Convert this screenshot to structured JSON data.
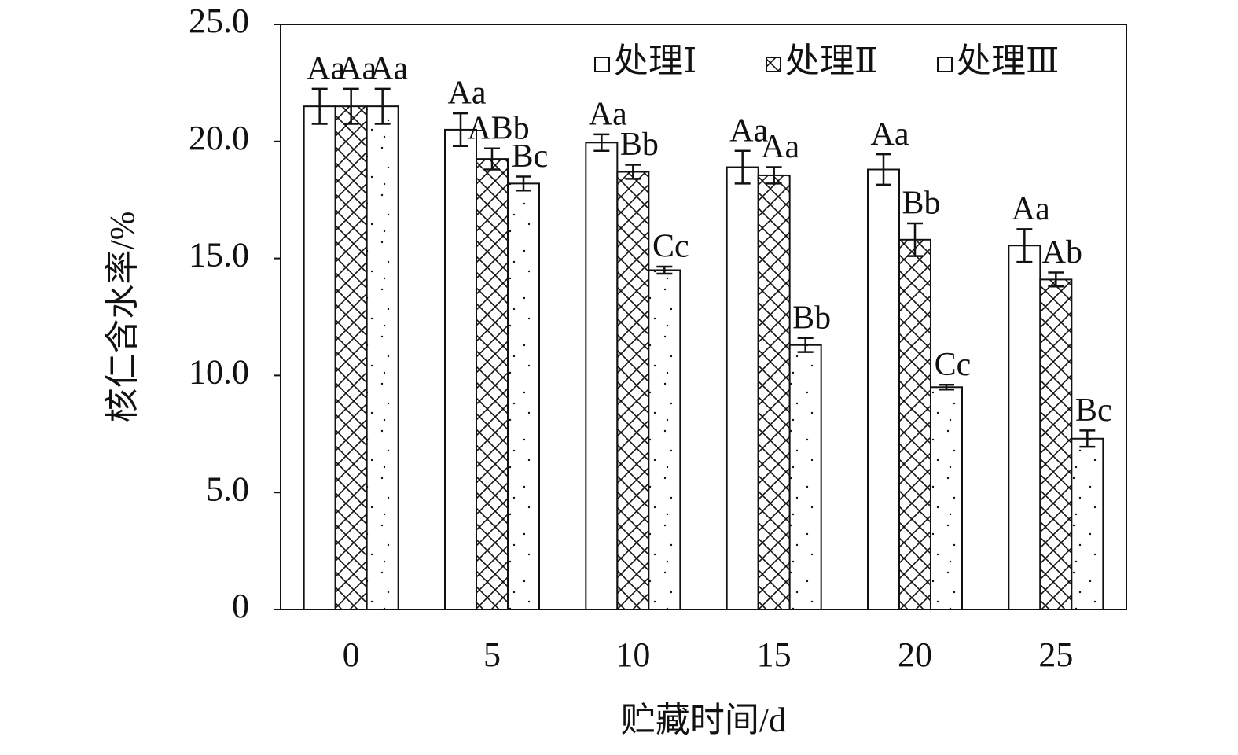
{
  "chart_data": {
    "type": "bar",
    "x_label": "贮藏时间/d",
    "y_label": "核仁含水率/%",
    "categories": [
      "0",
      "5",
      "10",
      "15",
      "20",
      "25"
    ],
    "series": [
      {
        "name": "处理Ⅰ",
        "color": "#ffffff",
        "pattern": "none",
        "values": [
          21.5,
          20.5,
          19.95,
          18.9,
          18.8,
          15.55
        ],
        "errors": [
          0.75,
          0.7,
          0.35,
          0.7,
          0.65,
          0.7
        ],
        "letters": [
          "Aa",
          "Aa",
          "Aa",
          "Aa",
          "Aa",
          "Aa"
        ]
      },
      {
        "name": "处理Ⅱ",
        "color": "#ffffff",
        "pattern": "crosshatch",
        "values": [
          21.5,
          19.25,
          18.7,
          18.55,
          15.8,
          14.1
        ],
        "errors": [
          0.75,
          0.45,
          0.3,
          0.35,
          0.7,
          0.3
        ],
        "letters": [
          "Aa",
          "ABb",
          "Bb",
          "Aa",
          "Bb",
          "Ab"
        ]
      },
      {
        "name": "处理Ⅲ",
        "color": "#ffffff",
        "pattern": "dots",
        "values": [
          21.5,
          18.2,
          14.5,
          11.3,
          9.5,
          7.3
        ],
        "errors": [
          0.75,
          0.3,
          0.15,
          0.3,
          0.1,
          0.35
        ],
        "letters": [
          "Aa",
          "Bc",
          "Cc",
          "Bb",
          "Cc",
          "Bc"
        ]
      }
    ],
    "ylim": [
      0,
      25
    ],
    "yticks": [
      0,
      {
        "value": 5,
        "label": "5.0"
      },
      {
        "value": 10,
        "label": "10.0"
      },
      {
        "value": 15,
        "label": "15.0"
      },
      {
        "value": 20,
        "label": "20.0"
      },
      {
        "value": 25,
        "label": "25.0"
      }
    ],
    "legend_loc": "upper right",
    "grid": false
  }
}
